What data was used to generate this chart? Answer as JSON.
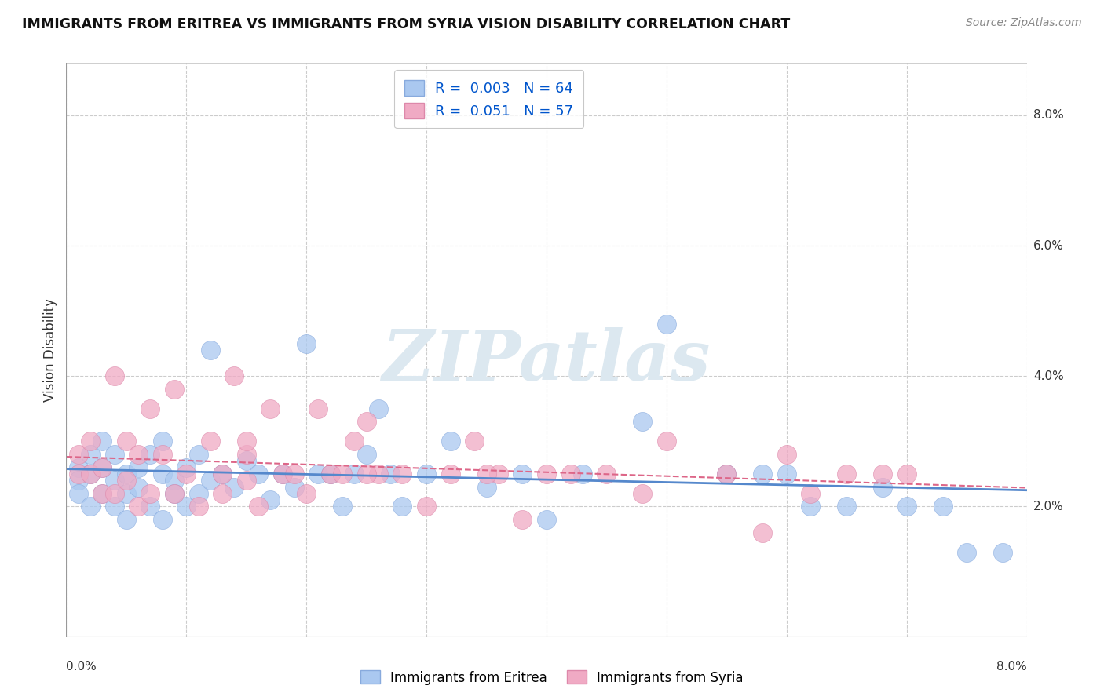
{
  "title": "IMMIGRANTS FROM ERITREA VS IMMIGRANTS FROM SYRIA VISION DISABILITY CORRELATION CHART",
  "source": "Source: ZipAtlas.com",
  "ylabel": "Vision Disability",
  "legend_eritrea": "Immigrants from Eritrea",
  "legend_syria": "Immigrants from Syria",
  "R_eritrea": 0.003,
  "N_eritrea": 64,
  "R_syria": 0.051,
  "N_syria": 57,
  "color_eritrea": "#aac8f0",
  "color_syria": "#f0aac4",
  "color_eritrea_line": "#5588cc",
  "color_syria_line": "#dd6688",
  "xlim": [
    0.0,
    0.08
  ],
  "ylim": [
    0.0,
    0.088
  ],
  "background_color": "#ffffff",
  "grid_color": "#cccccc",
  "watermark_color": "#dce8f0",
  "eritrea_x": [
    0.001,
    0.001,
    0.001,
    0.002,
    0.002,
    0.002,
    0.003,
    0.003,
    0.003,
    0.004,
    0.004,
    0.004,
    0.005,
    0.005,
    0.005,
    0.006,
    0.006,
    0.007,
    0.007,
    0.008,
    0.008,
    0.008,
    0.009,
    0.009,
    0.01,
    0.01,
    0.011,
    0.011,
    0.012,
    0.012,
    0.013,
    0.014,
    0.015,
    0.016,
    0.017,
    0.018,
    0.019,
    0.02,
    0.021,
    0.022,
    0.023,
    0.024,
    0.025,
    0.026,
    0.027,
    0.028,
    0.03,
    0.032,
    0.035,
    0.038,
    0.04,
    0.043,
    0.048,
    0.05,
    0.055,
    0.058,
    0.06,
    0.062,
    0.065,
    0.068,
    0.07,
    0.073,
    0.075,
    0.078
  ],
  "eritrea_y": [
    0.026,
    0.024,
    0.022,
    0.028,
    0.025,
    0.02,
    0.03,
    0.022,
    0.026,
    0.024,
    0.028,
    0.02,
    0.025,
    0.022,
    0.018,
    0.026,
    0.023,
    0.028,
    0.02,
    0.03,
    0.025,
    0.018,
    0.024,
    0.022,
    0.026,
    0.02,
    0.028,
    0.022,
    0.044,
    0.024,
    0.025,
    0.023,
    0.027,
    0.025,
    0.021,
    0.025,
    0.023,
    0.045,
    0.025,
    0.025,
    0.02,
    0.025,
    0.028,
    0.035,
    0.025,
    0.02,
    0.025,
    0.03,
    0.023,
    0.025,
    0.018,
    0.025,
    0.033,
    0.048,
    0.025,
    0.025,
    0.025,
    0.02,
    0.02,
    0.023,
    0.02,
    0.02,
    0.013,
    0.013
  ],
  "syria_x": [
    0.001,
    0.001,
    0.002,
    0.002,
    0.003,
    0.003,
    0.004,
    0.004,
    0.005,
    0.005,
    0.006,
    0.006,
    0.007,
    0.007,
    0.008,
    0.009,
    0.009,
    0.01,
    0.011,
    0.012,
    0.013,
    0.013,
    0.014,
    0.015,
    0.015,
    0.016,
    0.017,
    0.018,
    0.019,
    0.02,
    0.021,
    0.022,
    0.023,
    0.024,
    0.025,
    0.026,
    0.028,
    0.03,
    0.032,
    0.034,
    0.036,
    0.038,
    0.04,
    0.042,
    0.045,
    0.05,
    0.055,
    0.06,
    0.062,
    0.065,
    0.068,
    0.07,
    0.048,
    0.035,
    0.025,
    0.015,
    0.058
  ],
  "syria_y": [
    0.028,
    0.025,
    0.03,
    0.025,
    0.022,
    0.026,
    0.04,
    0.022,
    0.024,
    0.03,
    0.02,
    0.028,
    0.035,
    0.022,
    0.028,
    0.022,
    0.038,
    0.025,
    0.02,
    0.03,
    0.022,
    0.025,
    0.04,
    0.024,
    0.028,
    0.02,
    0.035,
    0.025,
    0.025,
    0.022,
    0.035,
    0.025,
    0.025,
    0.03,
    0.033,
    0.025,
    0.025,
    0.02,
    0.025,
    0.03,
    0.025,
    0.018,
    0.025,
    0.025,
    0.025,
    0.03,
    0.025,
    0.028,
    0.022,
    0.025,
    0.025,
    0.025,
    0.022,
    0.025,
    0.025,
    0.03,
    0.016
  ]
}
